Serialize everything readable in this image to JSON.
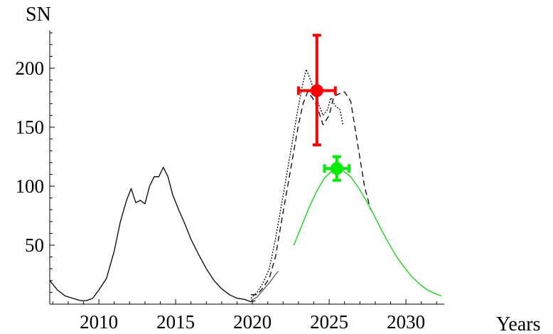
{
  "chart_data": {
    "type": "line",
    "title": "",
    "xlabel": "Years",
    "ylabel": "SN",
    "xlim": [
      2006.8,
      2032.5
    ],
    "ylim": [
      0,
      232
    ],
    "xticks": [
      2010,
      2015,
      2020,
      2025,
      2030
    ],
    "yticks": [
      50,
      100,
      150,
      200
    ],
    "grid": false,
    "legend": "none",
    "series": [
      {
        "style": "solid-black",
        "x": [
          2006.8,
          2007.3,
          2007.8,
          2008.3,
          2008.8,
          2009.2,
          2009.6,
          2010.0,
          2010.5,
          2011.0,
          2011.4,
          2011.8,
          2012.1,
          2012.4,
          2012.7,
          2013.0,
          2013.3,
          2013.6,
          2013.9,
          2014.2,
          2014.5,
          2014.8,
          2015.2,
          2015.6,
          2016.0,
          2016.5,
          2017.0,
          2017.5,
          2018.0,
          2018.5,
          2019.0,
          2019.5,
          2019.9,
          2020.2
        ],
        "y": [
          20,
          12,
          7,
          5,
          3,
          3,
          5,
          12,
          22,
          45,
          70,
          88,
          98,
          86,
          88,
          85,
          100,
          108,
          108,
          116,
          108,
          93,
          80,
          68,
          55,
          42,
          30,
          20,
          13,
          8,
          5,
          4,
          2,
          3
        ]
      },
      {
        "style": "dashed-black",
        "x": [
          2019.9,
          2020.3,
          2020.7,
          2021.1,
          2021.5,
          2022.0,
          2022.5,
          2023.0,
          2023.3,
          2023.6,
          2023.9,
          2024.2,
          2024.6,
          2025.0,
          2025.3,
          2025.6,
          2026.0,
          2026.4,
          2026.8,
          2027.3,
          2027.7
        ],
        "y": [
          8,
          8,
          14,
          22,
          40,
          78,
          115,
          152,
          170,
          180,
          175,
          168,
          152,
          160,
          176,
          178,
          180,
          172,
          140,
          100,
          80
        ]
      },
      {
        "style": "dotted-black",
        "x": [
          2019.9,
          2020.3,
          2020.7,
          2021.1,
          2021.5,
          2022.0,
          2022.5,
          2023.0,
          2023.3,
          2023.5,
          2023.7,
          2024.0,
          2024.3,
          2024.6,
          2024.9,
          2025.1,
          2025.4,
          2025.7,
          2025.9
        ],
        "y": [
          5,
          10,
          18,
          30,
          55,
          92,
          130,
          168,
          188,
          199,
          193,
          182,
          170,
          160,
          165,
          175,
          168,
          165,
          152
        ]
      },
      {
        "style": "solid-gray",
        "x": [
          2019.9,
          2020.3,
          2020.7,
          2021.1,
          2021.5,
          2021.7
        ],
        "y": [
          3,
          6,
          12,
          18,
          25,
          28
        ]
      },
      {
        "style": "green-curve",
        "x": [
          2022.7,
          2023.2,
          2023.7,
          2024.2,
          2024.7,
          2025.2,
          2025.5,
          2025.9,
          2026.4,
          2026.9,
          2027.4,
          2027.9,
          2028.4,
          2028.9,
          2029.4,
          2029.9,
          2030.4,
          2030.9,
          2031.4,
          2031.9,
          2032.3
        ],
        "y": [
          50,
          66,
          82,
          96,
          107,
          113,
          114,
          113,
          108,
          99,
          88,
          76,
          63,
          51,
          40,
          31,
          23,
          17,
          12,
          9,
          7
        ]
      }
    ],
    "points": [
      {
        "color": "#ff0000",
        "x": 2024.2,
        "y": 181,
        "xerr": 1.2,
        "yerr": [
          46,
          47
        ]
      },
      {
        "color": "#00ee00",
        "x": 2025.5,
        "y": 115,
        "xerr": 0.8,
        "yerr": [
          10,
          10
        ]
      }
    ]
  }
}
